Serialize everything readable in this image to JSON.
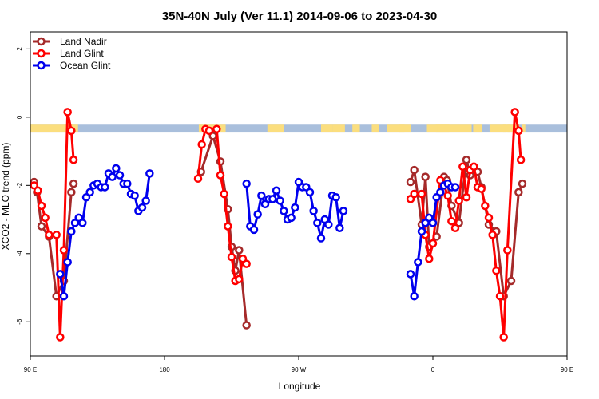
{
  "chart_data": {
    "type": "line",
    "title": "35N-40N July (Ver 11.1)   2014-09-06 to 2023-04-30",
    "xlabel": "Longitude",
    "ylabel": "XCO2 - MLO trend (ppm)",
    "xlim": [
      90,
      450
    ],
    "ylim": [
      -7,
      2.5
    ],
    "x_ticks": [
      {
        "value": 90,
        "label": "90 E"
      },
      {
        "value": 180,
        "label": "180"
      },
      {
        "value": 270,
        "label": "90 W"
      },
      {
        "value": 360,
        "label": "0"
      },
      {
        "value": 450,
        "label": "90 E"
      },
      {
        "value": 540,
        "label": "180"
      }
    ],
    "y_ticks": [
      -6,
      -4,
      -2,
      0,
      2
    ],
    "legend_position": "top-left",
    "land_ocean_band": {
      "y_range": [
        -0.45,
        -0.22
      ],
      "ocean_color": "#a9bfdc",
      "land_color": "#fbde7e",
      "land_segments": [
        [
          90,
          116
        ],
        [
          114,
          122
        ],
        [
          115,
          119
        ],
        [
          203,
          221
        ],
        [
          249,
          260
        ],
        [
          285,
          293
        ],
        [
          293,
          301
        ],
        [
          306,
          311
        ],
        [
          319,
          324
        ],
        [
          329,
          345
        ],
        [
          337,
          341
        ],
        [
          356,
          386
        ],
        [
          362,
          363
        ],
        [
          363,
          365
        ],
        [
          365,
          371
        ],
        [
          387,
          393
        ],
        [
          398,
          409
        ],
        [
          407,
          412
        ],
        [
          410,
          418
        ],
        [
          413,
          413
        ],
        [
          420,
          422
        ]
      ]
    },
    "series": [
      {
        "name": "Land Nadir",
        "color": "#a52a2a",
        "points": [
          [
            92.5,
            -1.9
          ],
          [
            94.5,
            -2.2
          ],
          [
            97.5,
            -3.2
          ],
          [
            102.5,
            -3.5
          ],
          [
            107.5,
            -5.25
          ],
          [
            112.5,
            -4.8
          ],
          [
            117.5,
            -2.2
          ],
          [
            119,
            -1.95
          ],
          null,
          [
            204.5,
            -1.6
          ],
          [
            212.5,
            -0.55
          ],
          [
            217.5,
            -1.3
          ],
          [
            222.5,
            -2.7
          ],
          [
            225,
            -3.8
          ],
          [
            227.5,
            -4.5
          ],
          [
            230,
            -3.9
          ],
          [
            235,
            -6.1
          ],
          null,
          [
            345,
            -1.9
          ],
          [
            347.5,
            -1.55
          ],
          [
            352.5,
            -3.15
          ],
          [
            355,
            -1.75
          ],
          [
            357.5,
            -3.8
          ],
          [
            362.5,
            -3.5
          ],
          [
            367.5,
            -1.75
          ],
          [
            369.5,
            -1.85
          ],
          [
            372.5,
            -2.6
          ],
          [
            377.5,
            -3.1
          ],
          [
            382.5,
            -1.25
          ],
          [
            385,
            -1.7
          ],
          [
            390,
            -1.6
          ],
          [
            392.5,
            -2.05
          ],
          [
            397.5,
            -3.15
          ],
          [
            402.5,
            -3.35
          ],
          [
            407.5,
            -5.25
          ],
          [
            412.5,
            -4.8
          ],
          [
            417.5,
            -2.2
          ],
          [
            420,
            -1.95
          ]
        ]
      },
      {
        "name": "Land Glint",
        "color": "#ff0000",
        "points": [
          [
            92.5,
            -2
          ],
          [
            95,
            -2.15
          ],
          [
            97.5,
            -2.6
          ],
          [
            100,
            -2.95
          ],
          [
            102.5,
            -3.45
          ],
          [
            107.5,
            -3.45
          ],
          [
            110,
            -6.45
          ],
          [
            112.5,
            -3.9
          ],
          [
            115,
            0.15
          ],
          [
            117.5,
            -0.4
          ],
          [
            119,
            -1.25
          ],
          null,
          [
            202.5,
            -1.8
          ],
          [
            205,
            -0.8
          ],
          [
            207.5,
            -0.35
          ],
          [
            210,
            -0.4
          ],
          [
            215,
            -0.35
          ],
          [
            217.5,
            -1.7
          ],
          [
            220,
            -2.25
          ],
          [
            222.5,
            -3.2
          ],
          [
            225,
            -4.1
          ],
          [
            227.5,
            -4.8
          ],
          [
            230,
            -4.75
          ],
          [
            232.5,
            -4.15
          ],
          [
            235,
            -4.3
          ],
          null,
          [
            345,
            -2.4
          ],
          [
            347.5,
            -2.25
          ],
          [
            352.5,
            -2.25
          ],
          [
            355,
            -3.45
          ],
          [
            357.5,
            -4.15
          ],
          [
            360,
            -3.7
          ],
          [
            365,
            -1.85
          ],
          [
            367.5,
            -2
          ],
          [
            370,
            -2.3
          ],
          [
            372.5,
            -3.05
          ],
          [
            375,
            -3.25
          ],
          [
            377.5,
            -2.45
          ],
          [
            380,
            -1.45
          ],
          [
            382.5,
            -2.35
          ],
          [
            385,
            -1.55
          ],
          [
            387.5,
            -1.45
          ],
          [
            390,
            -2.05
          ],
          [
            392.5,
            -2.1
          ],
          [
            395,
            -2.6
          ],
          [
            397.5,
            -2.95
          ],
          [
            400,
            -3.45
          ],
          [
            402.5,
            -4.5
          ],
          [
            405,
            -5.25
          ],
          [
            407.5,
            -6.45
          ],
          [
            410,
            -3.9
          ],
          [
            415,
            0.15
          ],
          [
            417.5,
            -0.4
          ],
          [
            419,
            -1.25
          ]
        ]
      },
      {
        "name": "Ocean Glint",
        "color": "#0000ee",
        "points": [
          [
            110,
            -4.6
          ],
          [
            112.5,
            -5.25
          ],
          [
            115,
            -4.25
          ],
          [
            117.5,
            -3.35
          ],
          [
            120,
            -3.1
          ],
          [
            122.5,
            -2.95
          ],
          [
            125,
            -3.1
          ],
          [
            127.5,
            -2.35
          ],
          [
            130,
            -2.2
          ],
          [
            132.5,
            -2
          ],
          [
            135,
            -1.95
          ],
          [
            137.5,
            -2.05
          ],
          [
            140,
            -2.05
          ],
          [
            142.5,
            -1.65
          ],
          [
            145,
            -1.75
          ],
          [
            147.5,
            -1.5
          ],
          [
            150,
            -1.7
          ],
          [
            152.5,
            -1.95
          ],
          [
            155,
            -1.95
          ],
          [
            157.5,
            -2.25
          ],
          [
            160,
            -2.3
          ],
          [
            162.5,
            -2.75
          ],
          [
            165,
            -2.65
          ],
          [
            167.5,
            -2.45
          ],
          [
            170,
            -1.65
          ],
          null,
          [
            235,
            -1.95
          ],
          [
            237.5,
            -3.2
          ],
          [
            240,
            -3.3
          ],
          [
            242.5,
            -2.85
          ],
          [
            245,
            -2.3
          ],
          [
            247.5,
            -2.55
          ],
          [
            250,
            -2.4
          ],
          [
            252.5,
            -2.4
          ],
          [
            255,
            -2.15
          ],
          [
            257.5,
            -2.45
          ],
          [
            260,
            -2.75
          ],
          [
            262.5,
            -3
          ],
          [
            265,
            -2.95
          ],
          [
            267.5,
            -2.65
          ],
          [
            270,
            -1.9
          ],
          [
            272.5,
            -2.05
          ],
          [
            275,
            -2.05
          ],
          [
            277.5,
            -2.2
          ],
          [
            280,
            -2.75
          ],
          [
            282.5,
            -3.1
          ],
          [
            285,
            -3.55
          ],
          [
            287.5,
            -3
          ],
          [
            290,
            -3.15
          ],
          [
            292.5,
            -2.3
          ],
          [
            295,
            -2.35
          ],
          [
            297.5,
            -3.25
          ],
          [
            300,
            -2.75
          ],
          null,
          [
            345,
            -4.6
          ],
          [
            347.5,
            -5.25
          ],
          [
            350,
            -4.25
          ],
          [
            352.5,
            -3.35
          ],
          [
            355,
            -3.1
          ],
          [
            357.5,
            -2.95
          ],
          [
            360,
            -3.1
          ],
          [
            362.5,
            -2.35
          ],
          [
            365,
            -2.2
          ],
          [
            367.5,
            -2
          ],
          [
            370,
            -1.95
          ],
          [
            372.5,
            -2.05
          ],
          [
            375,
            -2.05
          ]
        ]
      }
    ]
  }
}
